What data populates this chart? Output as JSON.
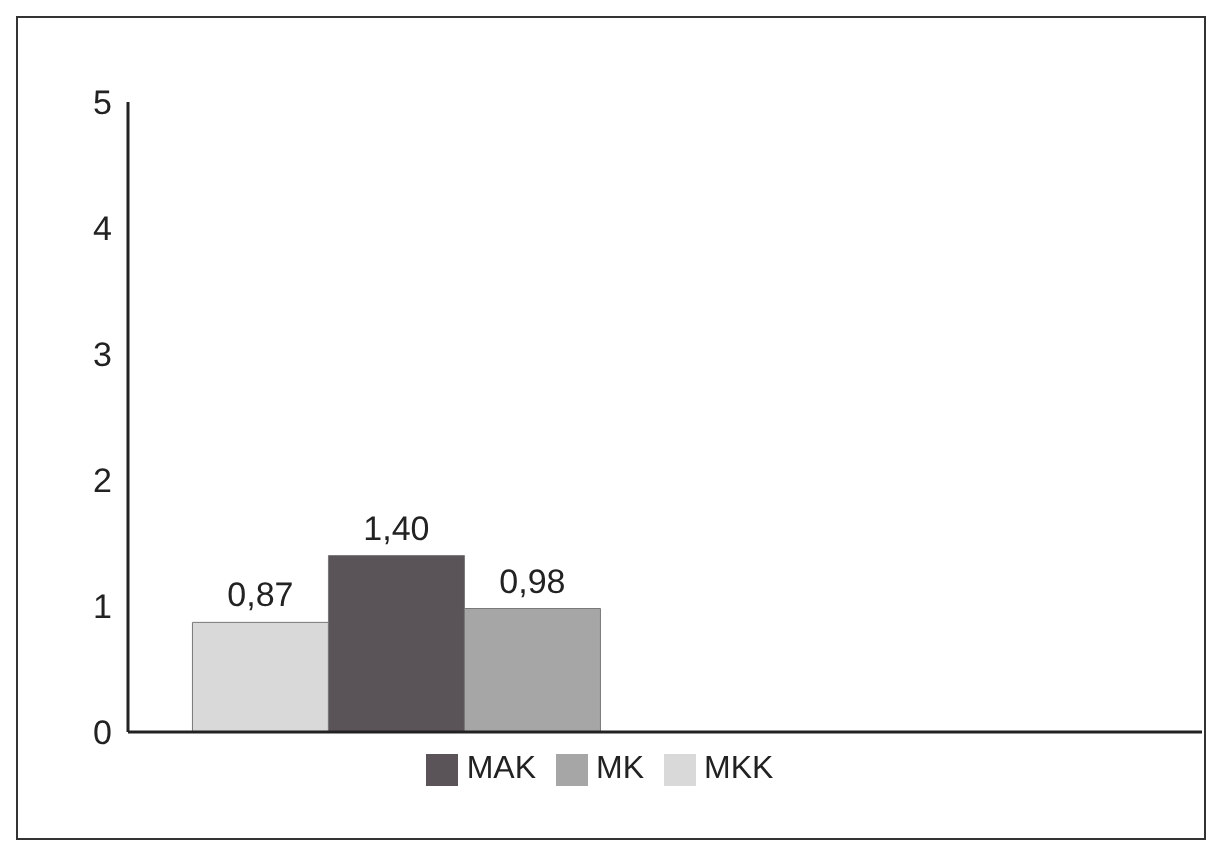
{
  "chart_data": {
    "type": "bar",
    "categories": [
      null,
      null
    ],
    "series": [
      {
        "name": "MKK",
        "color": "#d9d9d9",
        "values": [
          0.87,
          null
        ],
        "value_labels": [
          "0,87",
          null
        ]
      },
      {
        "name": "MAK",
        "color": "#5a5358",
        "values": [
          1.4,
          null
        ],
        "value_labels": [
          "1,40",
          null
        ]
      },
      {
        "name": "MK",
        "color": "#a6a6a6",
        "values": [
          0.98,
          null
        ],
        "value_labels": [
          "0,98",
          null
        ]
      }
    ],
    "ylim": [
      0,
      5
    ],
    "yticks": [
      0,
      1,
      2,
      3,
      4,
      5
    ],
    "grid": false,
    "legend": "bottom"
  }
}
